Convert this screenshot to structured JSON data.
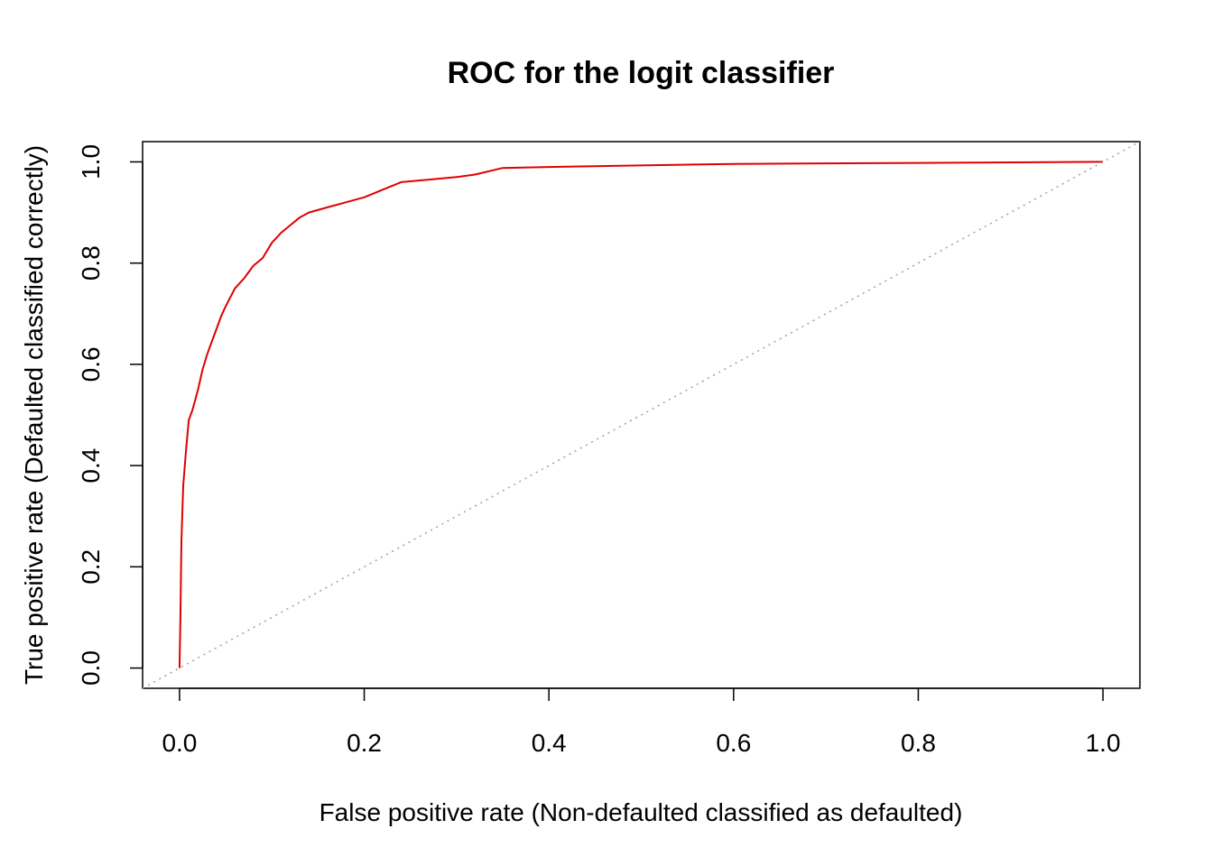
{
  "chart_data": {
    "type": "line",
    "title": "ROC for the logit classifier",
    "xlabel": "False positive rate (Non-defaulted classified as defaulted)",
    "ylabel": "True positive rate (Defaulted classified correctly)",
    "xlim": [
      -0.04,
      1.04
    ],
    "ylim": [
      -0.04,
      1.04
    ],
    "xticks": [
      "0.0",
      "0.2",
      "0.4",
      "0.6",
      "0.8",
      "1.0"
    ],
    "yticks": [
      "0.0",
      "0.2",
      "0.4",
      "0.6",
      "0.8",
      "1.0"
    ],
    "grid": false,
    "series": [
      {
        "color": "#e00000",
        "style": "solid",
        "points": [
          [
            0.0,
            0.0
          ],
          [
            0.001,
            0.1
          ],
          [
            0.002,
            0.25
          ],
          [
            0.004,
            0.36
          ],
          [
            0.007,
            0.43
          ],
          [
            0.01,
            0.49
          ],
          [
            0.014,
            0.51
          ],
          [
            0.02,
            0.55
          ],
          [
            0.025,
            0.59
          ],
          [
            0.03,
            0.62
          ],
          [
            0.035,
            0.645
          ],
          [
            0.04,
            0.67
          ],
          [
            0.045,
            0.695
          ],
          [
            0.05,
            0.715
          ],
          [
            0.06,
            0.75
          ],
          [
            0.07,
            0.77
          ],
          [
            0.08,
            0.795
          ],
          [
            0.09,
            0.81
          ],
          [
            0.1,
            0.84
          ],
          [
            0.11,
            0.86
          ],
          [
            0.12,
            0.875
          ],
          [
            0.13,
            0.89
          ],
          [
            0.14,
            0.9
          ],
          [
            0.16,
            0.91
          ],
          [
            0.18,
            0.92
          ],
          [
            0.2,
            0.93
          ],
          [
            0.22,
            0.945
          ],
          [
            0.24,
            0.96
          ],
          [
            0.27,
            0.965
          ],
          [
            0.3,
            0.97
          ],
          [
            0.32,
            0.975
          ],
          [
            0.35,
            0.988
          ],
          [
            0.4,
            0.99
          ],
          [
            0.5,
            0.993
          ],
          [
            0.6,
            0.996
          ],
          [
            0.8,
            0.998
          ],
          [
            1.0,
            1.0
          ]
        ]
      },
      {
        "color": "#a0a0a0",
        "style": "dotted",
        "points": [
          [
            -0.04,
            -0.04
          ],
          [
            1.04,
            1.04
          ]
        ]
      }
    ]
  }
}
